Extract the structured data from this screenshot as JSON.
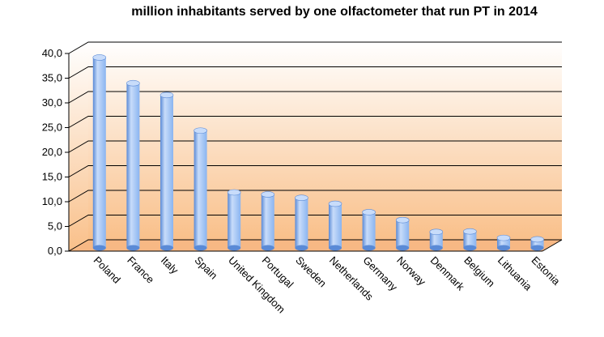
{
  "chart_data": {
    "type": "bar",
    "title": "million inhabitants served by one olfactometer that run PT in 2014",
    "xlabel": "",
    "ylabel": "",
    "categories": [
      "Poland",
      "France",
      "Italy",
      "Spain",
      "United Kingdom",
      "Portugal",
      "Sweden",
      "Netherlands",
      "Germany",
      "Norway",
      "Denmark",
      "Belgium",
      "Lithuania",
      "Estonia"
    ],
    "values": [
      38.2,
      33.0,
      30.6,
      23.4,
      10.9,
      10.5,
      9.8,
      8.6,
      6.9,
      5.3,
      2.9,
      3.0,
      1.7,
      1.4
    ],
    "ylim": [
      0,
      40
    ],
    "yticks": [
      "0,0",
      "5,0",
      "10,0",
      "15,0",
      "20,0",
      "25,0",
      "30,0",
      "35,0",
      "40,0"
    ],
    "grid": true,
    "legend": "none",
    "colors": {
      "bar": "#8ab4f0",
      "bar_dark": "#5a8ad6",
      "bar_light": "#c8dcfa",
      "wall_top": "#ffffff",
      "wall_bottom": "#f9c08a",
      "floor": "#f7b884"
    }
  }
}
